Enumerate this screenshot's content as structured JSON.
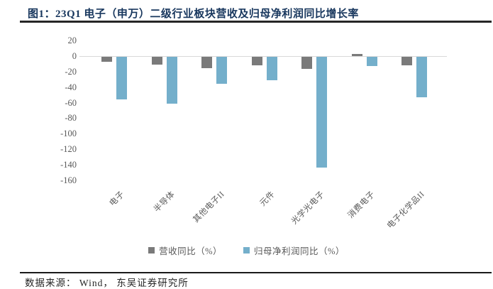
{
  "header": {
    "title": "图1：23Q1 电子（申万）二级行业板块营收及归母净利润同比增长率"
  },
  "footer": {
    "source": "数据来源： Wind，  东吴证券研究所"
  },
  "chart_data": {
    "type": "bar",
    "categories": [
      "电子",
      "半导体",
      "其他电子II",
      "元件",
      "光学光电子",
      "消费电子",
      "电子化学品II"
    ],
    "series": [
      {
        "name": "营收同比（%）",
        "color": "#7a7a7a",
        "values": [
          -6,
          -10,
          -15,
          -11,
          -16,
          3,
          -11
        ]
      },
      {
        "name": "归母净利润同比（%）",
        "color": "#74afcb",
        "values": [
          -55,
          -60,
          -35,
          -30,
          -143,
          -12,
          -52
        ]
      }
    ],
    "title": "",
    "xlabel": "",
    "ylabel": "",
    "ylim": [
      -160,
      20
    ],
    "ytick_interval": 20,
    "ytick_labels": [
      "20",
      "0",
      "-20",
      "-40",
      "-60",
      "-80",
      "-100",
      "-120",
      "-140",
      "-160"
    ],
    "grid": false,
    "legend_position": "bottom",
    "zero_line_color": "#d9d9d9"
  }
}
